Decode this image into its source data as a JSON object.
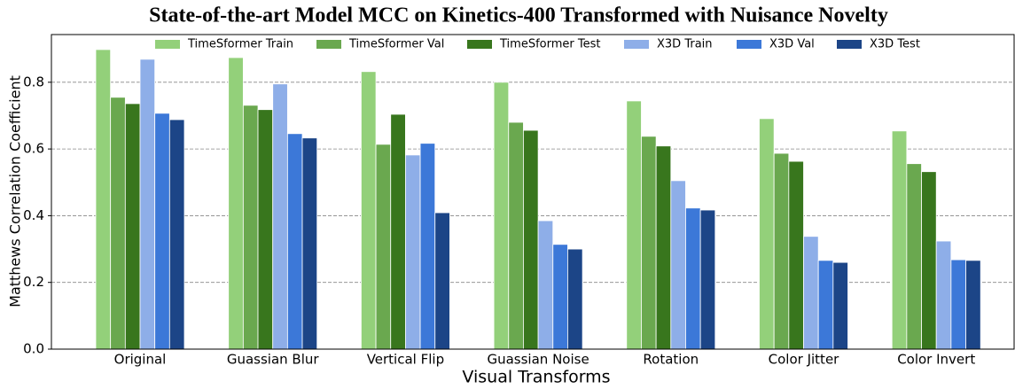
{
  "chart_data": {
    "type": "bar",
    "title": "State-of-the-art Model MCC on Kinetics-400 Transformed with Nuisance Novelty",
    "xlabel": "Visual Transforms",
    "ylabel": "Matthews Correlation Coefficient",
    "categories": [
      "Original",
      "Guassian Blur",
      "Vertical Flip",
      "Guassian Noise",
      "Rotation",
      "Color Jitter",
      "Color Invert"
    ],
    "series": [
      {
        "name": "TimeSformer Train",
        "color": "#93d07a",
        "values": [
          0.898,
          0.874,
          0.832,
          0.8,
          0.744,
          0.691,
          0.654
        ]
      },
      {
        "name": "TimeSformer Val",
        "color": "#6aa84f",
        "values": [
          0.755,
          0.731,
          0.614,
          0.68,
          0.638,
          0.587,
          0.556
        ]
      },
      {
        "name": "TimeSformer Test",
        "color": "#38761d",
        "values": [
          0.736,
          0.718,
          0.704,
          0.656,
          0.609,
          0.563,
          0.532
        ]
      },
      {
        "name": "X3D Train",
        "color": "#8eaee8",
        "values": [
          0.869,
          0.795,
          0.582,
          0.385,
          0.505,
          0.338,
          0.324
        ]
      },
      {
        "name": "X3D Val",
        "color": "#3c78d8",
        "values": [
          0.707,
          0.646,
          0.617,
          0.314,
          0.423,
          0.266,
          0.268
        ]
      },
      {
        "name": "X3D Test",
        "color": "#1c4587",
        "values": [
          0.688,
          0.633,
          0.409,
          0.3,
          0.417,
          0.26,
          0.266
        ]
      }
    ],
    "ylim": [
      0,
      0.943
    ],
    "yticks": [
      {
        "value": 0,
        "label": "0.0"
      },
      0.2,
      0.4,
      0.6,
      0.8
    ],
    "grid": true,
    "legend": "top"
  }
}
